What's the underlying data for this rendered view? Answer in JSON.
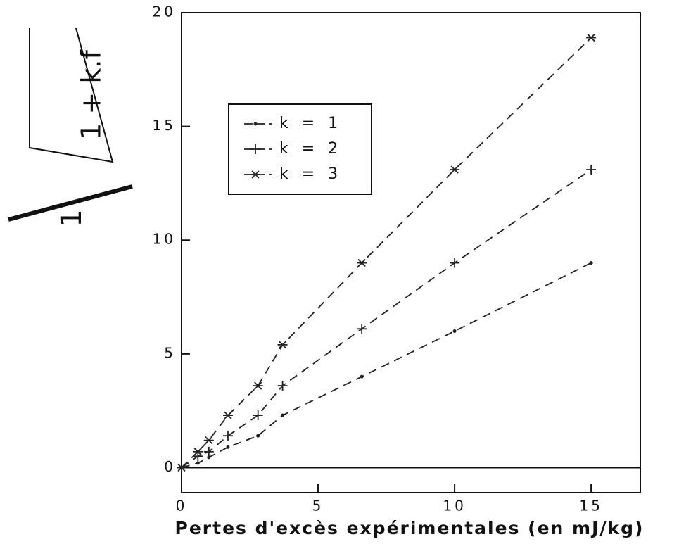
{
  "chart_data": {
    "type": "line",
    "x_label": "Pertes d'excès expérimentales (en mJ/kg)",
    "y_label": {
      "numerator": "1",
      "radicand": "1 + k.f"
    },
    "x": [
      0,
      0.6,
      1,
      1.7,
      2.8,
      3.7,
      6.6,
      10,
      15
    ],
    "series": [
      {
        "name": "k = 1",
        "marker": "dot",
        "color": "#222",
        "values": [
          0,
          0.2,
          0.45,
          0.9,
          1.4,
          2.3,
          4.0,
          6.0,
          9.0
        ]
      },
      {
        "name": "k = 2",
        "marker": "plus",
        "color": "#222",
        "values": [
          0,
          0.5,
          0.7,
          1.4,
          2.3,
          3.6,
          6.1,
          9.0,
          13.1
        ]
      },
      {
        "name": "k = 3",
        "marker": "star",
        "color": "#222",
        "values": [
          0,
          0.7,
          1.2,
          2.3,
          3.6,
          5.4,
          9.0,
          13.1,
          18.9
        ]
      }
    ],
    "xlim": [
      0,
      16.8
    ],
    "ylim": [
      -1.1,
      20
    ],
    "xticks": [
      0,
      5,
      10,
      15
    ],
    "yticks": [
      0,
      5,
      10,
      15,
      20
    ],
    "zero_line": true,
    "legend": "upper left"
  }
}
